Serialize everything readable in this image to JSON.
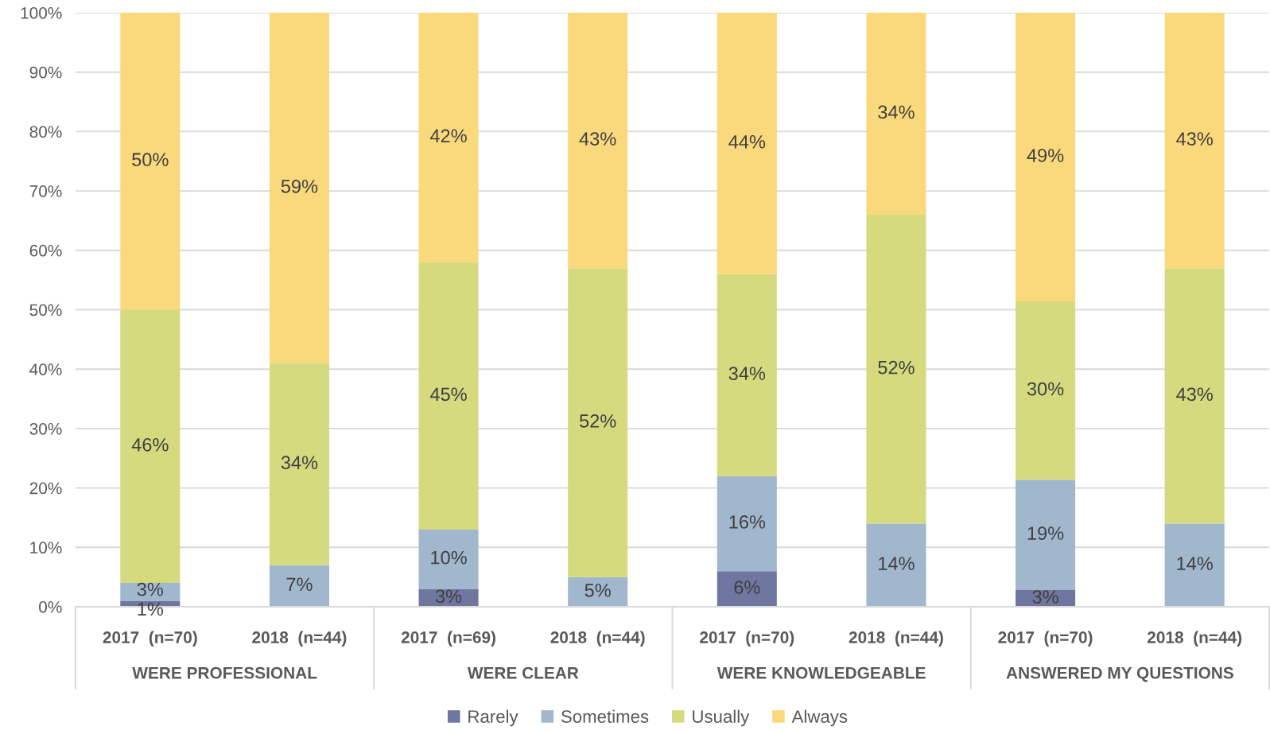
{
  "chart_data": {
    "type": "bar",
    "stacked": true,
    "categories": [
      "2017  (n=70)",
      "2018  (n=44)",
      "2017  (n=69)",
      "2018  (n=44)",
      "2017  (n=70)",
      "2018  (n=44)",
      "2017  (n=70)",
      "2018  (n=44)"
    ],
    "series": [
      {
        "name": "Rarely",
        "color": "#6f77a0",
        "values": [
          1,
          null,
          3,
          null,
          6,
          null,
          2.8,
          null
        ],
        "value_labels": [
          "1%",
          null,
          "3%",
          null,
          "6%",
          null,
          "3%",
          null
        ]
      },
      {
        "name": "Sometimes",
        "color": "#a0b7ce",
        "values": [
          3,
          7,
          10,
          5,
          16,
          14,
          18.6,
          14
        ],
        "value_labels": [
          "3%",
          "7%",
          "10%",
          "5%",
          "16%",
          "14%",
          "19%",
          "14%"
        ]
      },
      {
        "name": "Usually",
        "color": "#d4da7d",
        "values": [
          46,
          34,
          45,
          52,
          34,
          52,
          30,
          43
        ],
        "value_labels": [
          "46%",
          "34%",
          "45%",
          "52%",
          "34%",
          "52%",
          "30%",
          "43%"
        ]
      },
      {
        "name": "Always",
        "color": "#f9d97c",
        "values": [
          50,
          59,
          42,
          43,
          44,
          34,
          48.6,
          43
        ],
        "value_labels": [
          "50%",
          "59%",
          "42%",
          "43%",
          "44%",
          "34%",
          "49%",
          "43%"
        ]
      }
    ],
    "ylim": [
      0,
      100
    ],
    "yticks": [
      {
        "value": 0,
        "label": "0%"
      },
      {
        "value": 10,
        "label": "10%"
      },
      {
        "value": 20,
        "label": "20%"
      },
      {
        "value": 30,
        "label": "30%"
      },
      {
        "value": 40,
        "label": "40%"
      },
      {
        "value": 50,
        "label": "50%"
      },
      {
        "value": 60,
        "label": "60%"
      },
      {
        "value": 70,
        "label": "70%"
      },
      {
        "value": 80,
        "label": "80%"
      },
      {
        "value": 90,
        "label": "90%"
      },
      {
        "value": 100,
        "label": "100%"
      }
    ],
    "grid": "y",
    "legend": "bottom",
    "annotations": [
      "WERE PROFESSIONAL",
      "WERE CLEAR",
      "WERE KNOWLEDGEABLE",
      "ANSWERED MY QUESTIONS"
    ]
  }
}
